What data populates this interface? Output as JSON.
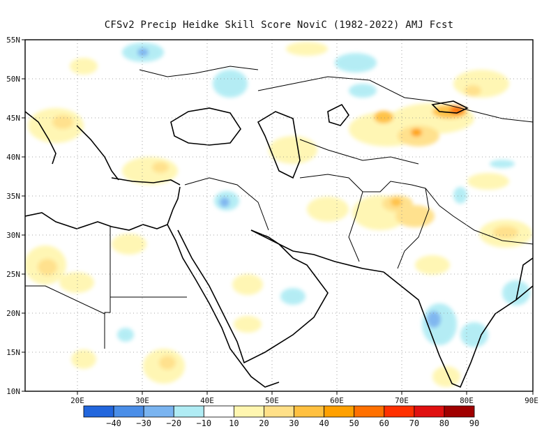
{
  "title": "CFSv2 Precip Heidke Skill Score NoviC (1982-2022) AMJ Fcst",
  "axes": {
    "lon_labels": [
      "20E",
      "30E",
      "40E",
      "50E",
      "60E",
      "70E",
      "80E",
      "90E"
    ],
    "lat_labels": [
      "55N",
      "50N",
      "45N",
      "40N",
      "35N",
      "30N",
      "25N",
      "20N",
      "15N",
      "10N"
    ]
  },
  "colorbar": {
    "labels": [
      "−40",
      "−30",
      "−20",
      "−10",
      "10",
      "20",
      "30",
      "40",
      "50",
      "60",
      "70",
      "80",
      "90"
    ],
    "colors": [
      "#2266dd",
      "#4a8ee8",
      "#7ab4f0",
      "#b0ecf4",
      "#ffffff",
      "#fff6b0",
      "#ffe088",
      "#ffc040",
      "#ffa000",
      "#ff7000",
      "#ff3000",
      "#e01010",
      "#a00000"
    ]
  },
  "colors": {
    "land_outline": "#000000",
    "grid": "#888888"
  }
}
